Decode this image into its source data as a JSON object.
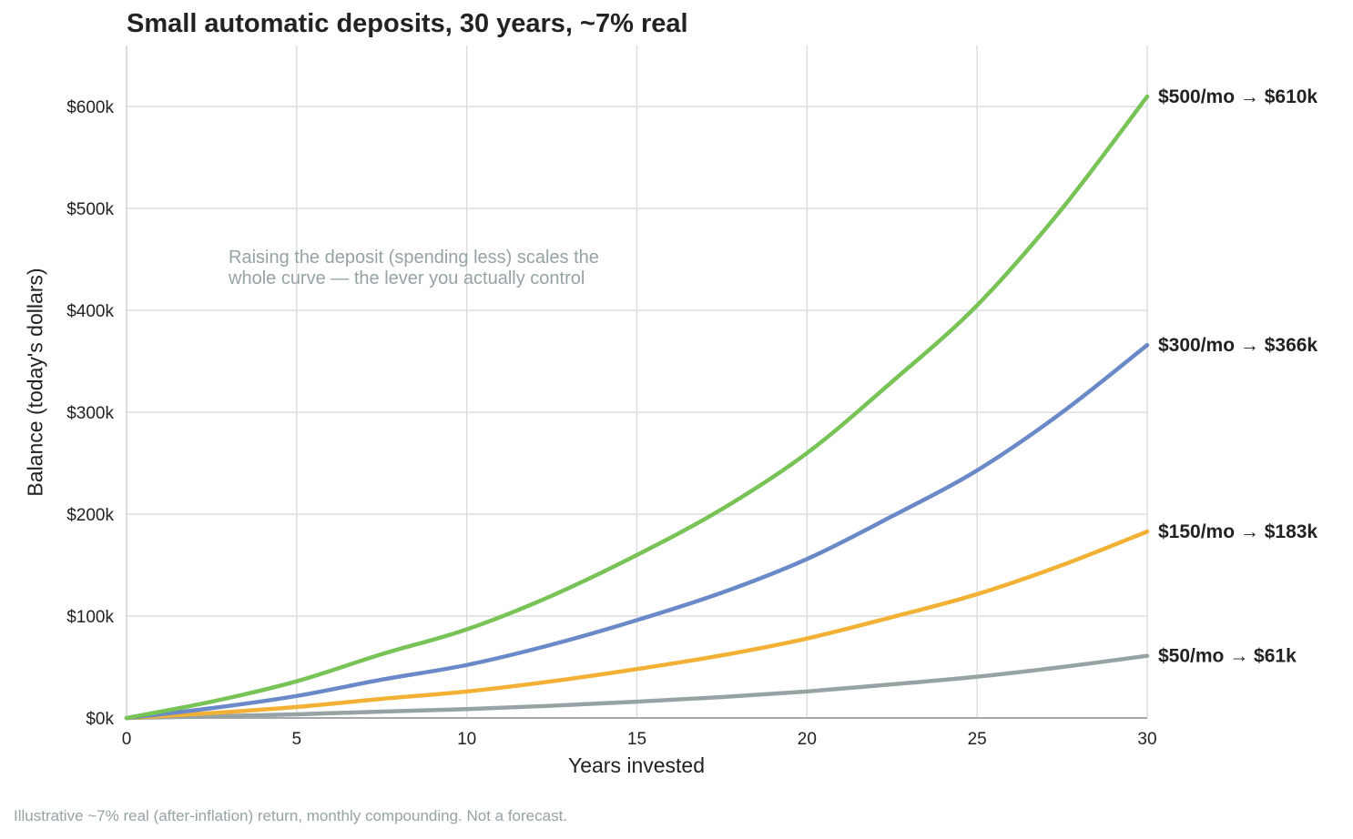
{
  "chart_data": {
    "type": "line",
    "title": "Small automatic deposits, 30 years, ~7% real",
    "xlabel": "Years invested",
    "ylabel": "Balance (today's dollars)",
    "xlim": [
      0,
      30
    ],
    "ylim": [
      0,
      660000
    ],
    "x_ticks": [
      0,
      5,
      10,
      15,
      20,
      25,
      30
    ],
    "x_tick_labels": [
      "0",
      "5",
      "10",
      "15",
      "20",
      "25",
      "30"
    ],
    "y_ticks": [
      0,
      100000,
      200000,
      300000,
      400000,
      500000,
      600000
    ],
    "y_tick_labels": [
      "$0k",
      "$100k",
      "$200k",
      "$300k",
      "$400k",
      "$500k",
      "$600k"
    ],
    "grid": true,
    "annotation": "Raising the deposit (spending less) scales the\nwhole curve — the lever you actually control",
    "x": [
      0,
      2.5,
      5,
      7.5,
      10,
      12.5,
      15,
      17.5,
      20,
      22.5,
      25,
      27.5,
      30
    ],
    "series": [
      {
        "label": "$50/mo → $61k",
        "color": "#96a3a5",
        "values": [
          0,
          1600,
          3600,
          6300,
          8700,
          12000,
          16000,
          20500,
          26000,
          33000,
          40500,
          50000,
          61000
        ]
      },
      {
        "label": "$150/mo → $183k",
        "color": "#f2b134",
        "values": [
          0,
          4800,
          10800,
          18800,
          26000,
          36000,
          48000,
          61500,
          78000,
          99000,
          121500,
          150000,
          183000
        ]
      },
      {
        "label": "$300/mo → $366k",
        "color": "#6a89c8",
        "values": [
          0,
          9600,
          21600,
          37600,
          52000,
          72000,
          96000,
          123000,
          156000,
          198000,
          243000,
          300000,
          366000
        ]
      },
      {
        "label": "$500/mo → $610k",
        "color": "#77c356",
        "values": [
          0,
          16000,
          36000,
          62600,
          87000,
          120000,
          160000,
          205000,
          260000,
          330000,
          405000,
          500000,
          610000
        ]
      }
    ]
  },
  "footnote": "Illustrative ~7% real (after-inflation) return, monthly compounding. Not a forecast."
}
